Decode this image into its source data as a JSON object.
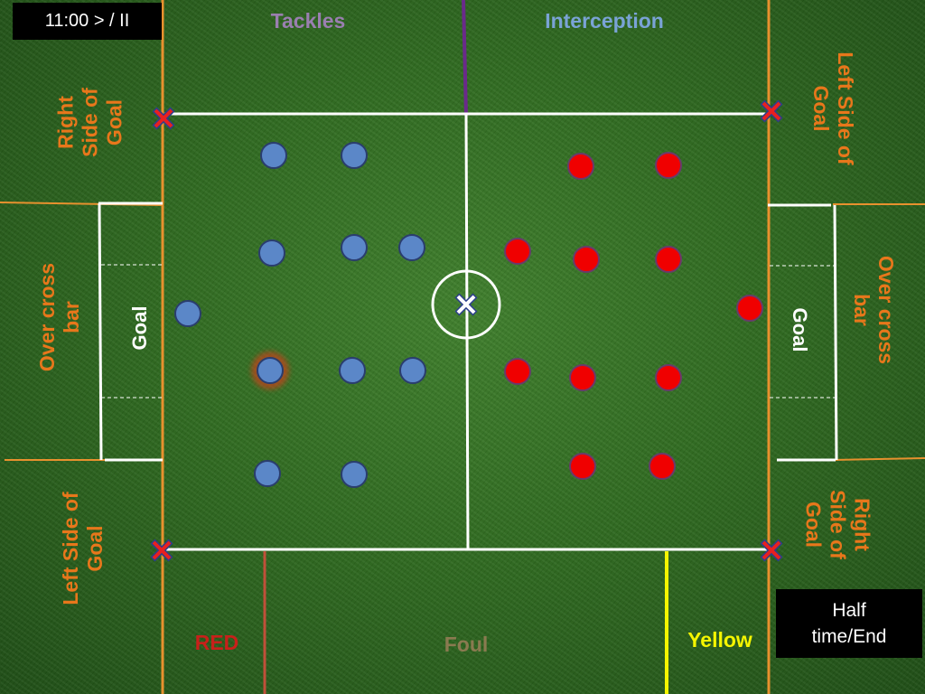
{
  "clock": {
    "label": "11:00 > / II"
  },
  "half_time": {
    "line1": "Half",
    "line2": "time/End"
  },
  "events": {
    "tackles": "Tackles",
    "interception": "Interception",
    "red": "RED",
    "foul": "Foul",
    "yellow": "Yellow"
  },
  "left_end": {
    "right_side_of_goal": [
      "Right",
      "Side of",
      "Goal"
    ],
    "over_cross_bar": [
      "Over cross",
      "bar"
    ],
    "goal": "Goal",
    "left_side_of_goal": [
      "Left Side of",
      "Goal"
    ]
  },
  "right_end": {
    "left_side_of_goal": [
      "Left Side of",
      "Goal"
    ],
    "over_cross_bar": [
      "Over cross",
      "bar"
    ],
    "goal": "Goal",
    "right_side_of_goal": [
      "Right",
      "Side of",
      "Goal"
    ]
  },
  "colors": {
    "blue_team": "#5b87c8",
    "red_team": "#f00000",
    "event_orange": "#e8771b",
    "tackles": "#9a7fb0",
    "interception": "#7aa3d6",
    "red_card": "#c8201a",
    "foul": "#8a7a50",
    "yellow_card": "#f5f500"
  }
}
